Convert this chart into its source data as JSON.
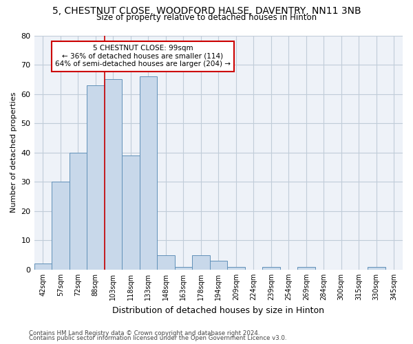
{
  "title_line1": "5, CHESTNUT CLOSE, WOODFORD HALSE, DAVENTRY, NN11 3NB",
  "title_line2": "Size of property relative to detached houses in Hinton",
  "xlabel": "Distribution of detached houses by size in Hinton",
  "ylabel": "Number of detached properties",
  "footer_line1": "Contains HM Land Registry data © Crown copyright and database right 2024.",
  "footer_line2": "Contains public sector information licensed under the Open Government Licence v3.0.",
  "categories": [
    "42sqm",
    "57sqm",
    "72sqm",
    "88sqm",
    "103sqm",
    "118sqm",
    "133sqm",
    "148sqm",
    "163sqm",
    "178sqm",
    "194sqm",
    "209sqm",
    "224sqm",
    "239sqm",
    "254sqm",
    "269sqm",
    "284sqm",
    "300sqm",
    "315sqm",
    "330sqm",
    "345sqm"
  ],
  "values": [
    2,
    30,
    40,
    63,
    65,
    39,
    66,
    5,
    1,
    5,
    3,
    1,
    0,
    1,
    0,
    1,
    0,
    0,
    0,
    1,
    0
  ],
  "bar_color": "#c8d8ea",
  "bar_edge_color": "#6090b8",
  "bar_edge_width": 0.7,
  "vline_color": "#cc0000",
  "vline_label": "5 CHESTNUT CLOSE: 99sqm",
  "annotation_smaller": "← 36% of detached houses are smaller (114)",
  "annotation_larger": "64% of semi-detached houses are larger (204) →",
  "annotation_box_color": "#ffffff",
  "annotation_box_edge": "#cc0000",
  "ylim": [
    0,
    80
  ],
  "yticks": [
    0,
    10,
    20,
    30,
    40,
    50,
    60,
    70,
    80
  ],
  "grid_color": "#c0ccd8",
  "background_color": "#eef2f8",
  "vline_position": 3.5
}
